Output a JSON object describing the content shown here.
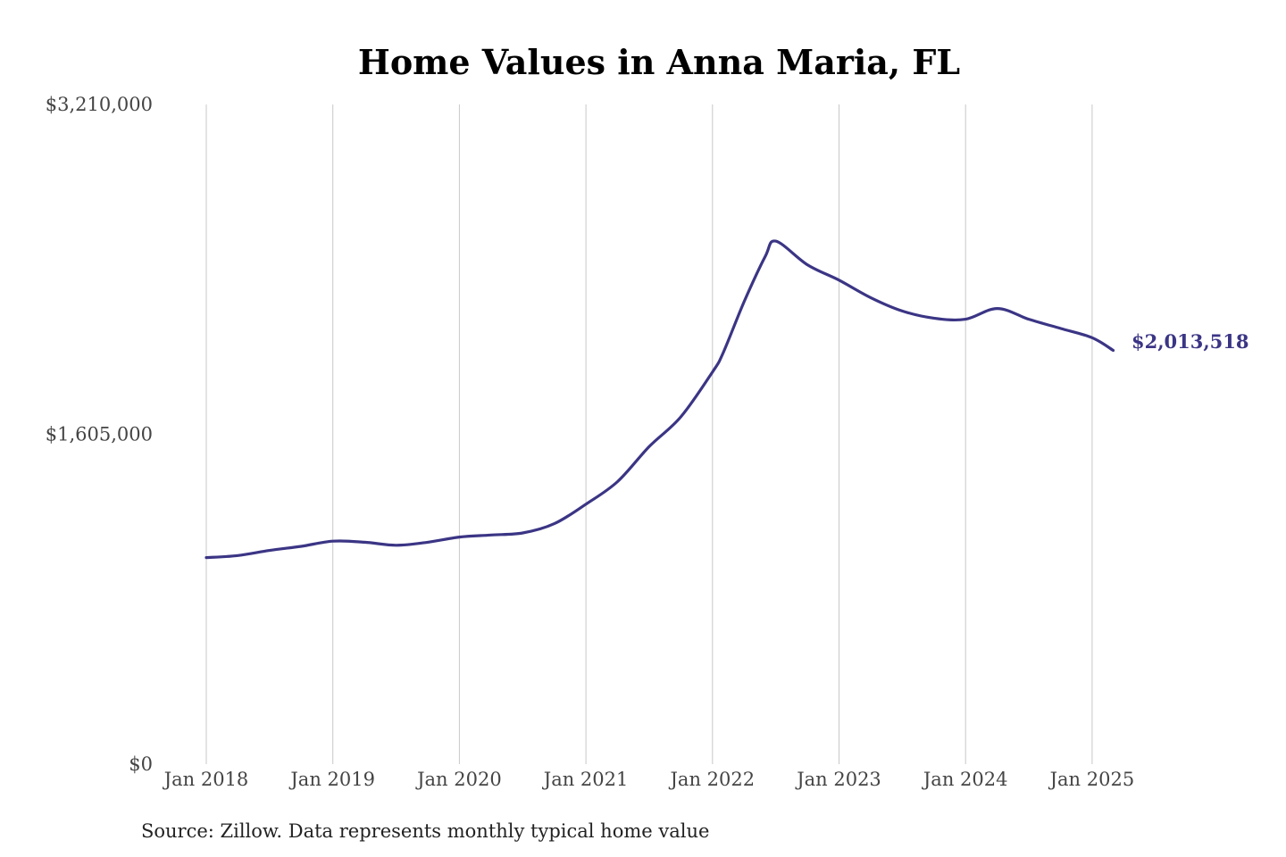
{
  "source_note": "Source: Zillow. Data represents monthly typical home value",
  "colors": {
    "line": "#3b3585",
    "grid": "#c8c8c8",
    "tick_text": "#444444"
  },
  "chart_data": {
    "type": "line",
    "title": "Home Values in Anna Maria, FL",
    "xlabel": "",
    "ylabel": "",
    "y_ticks": [
      "$0",
      "$1,605,000",
      "$3,210,000"
    ],
    "y_tick_values": [
      0,
      1605000,
      3210000
    ],
    "ylim": [
      0,
      3210000
    ],
    "x_ticks": [
      "Jan 2018",
      "Jan 2019",
      "Jan 2020",
      "Jan 2021",
      "Jan 2022",
      "Jan 2023",
      "Jan 2024",
      "Jan 2025"
    ],
    "grid": "vertical",
    "end_label": "$2,013,518",
    "series": [
      {
        "x": [
          "2018-01",
          "2018-04",
          "2018-07",
          "2018-10",
          "2019-01",
          "2019-04",
          "2019-07",
          "2019-10",
          "2020-01",
          "2020-04",
          "2020-07",
          "2020-10",
          "2021-01",
          "2021-04",
          "2021-07",
          "2021-10",
          "2022-01",
          "2022-02",
          "2022-04",
          "2022-06",
          "2022-07",
          "2022-10",
          "2023-01",
          "2023-04",
          "2023-07",
          "2023-10",
          "2024-01",
          "2024-04",
          "2024-07",
          "2024-10",
          "2025-01",
          "2025-03"
        ],
        "values": [
          1005000,
          1015000,
          1040000,
          1060000,
          1085000,
          1080000,
          1065000,
          1080000,
          1105000,
          1115000,
          1125000,
          1170000,
          1265000,
          1375000,
          1545000,
          1690000,
          1908000,
          2000000,
          2250000,
          2470000,
          2545000,
          2430000,
          2355000,
          2270000,
          2205000,
          2170000,
          2165000,
          2217000,
          2165000,
          2120000,
          2075000,
          2013518
        ]
      }
    ]
  }
}
